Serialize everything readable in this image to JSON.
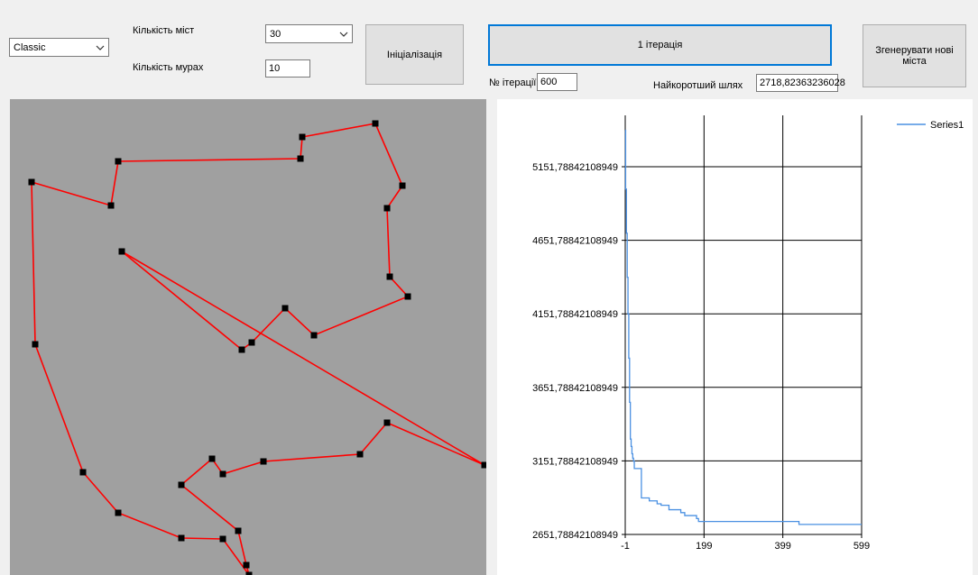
{
  "toolbar": {
    "algorithm": "Classic",
    "cities_label": "Кількість міст",
    "cities_value": "30",
    "ants_label": "Кількість мурах",
    "ants_value": "10",
    "init_button": "Ініціалізація",
    "iterate_button": "1 ітерація",
    "iteration_label": "№ ітерації",
    "iteration_value": "600",
    "shortest_label": "Найкоротший шлях",
    "shortest_value": "2718,82363236028",
    "generate_button": "Згенерувати нові міста"
  },
  "colors": {
    "route": "#ff0000",
    "city": "#000000",
    "series": "#4a90e2",
    "map_bg": "#a0a0a0"
  },
  "chart_data": {
    "type": "line",
    "series": [
      {
        "name": "Series1",
        "x": [
          -1,
          0,
          2,
          4,
          6,
          8,
          10,
          12,
          14,
          16,
          18,
          20,
          22,
          30,
          40,
          60,
          80,
          90,
          110,
          140,
          150,
          170,
          180,
          185,
          440,
          599
        ],
        "y": [
          5400,
          5000,
          4700,
          4400,
          4150,
          3850,
          3550,
          3300,
          3250,
          3200,
          3170,
          3150,
          3100,
          3100,
          2900,
          2880,
          2860,
          2850,
          2820,
          2800,
          2780,
          2780,
          2760,
          2740,
          2720,
          2720
        ]
      }
    ],
    "xticks": [
      "-1",
      "199",
      "399",
      "599"
    ],
    "yticks": [
      "5151,78842108949",
      "4651,78842108949",
      "4151,78842108949",
      "3651,78842108949",
      "3151,78842108949",
      "2651,78842108949"
    ],
    "xlim": [
      -1,
      599
    ],
    "ylim": [
      2651.78842108949,
      5451.78842108949
    ],
    "grid": true,
    "legend": "top-right"
  }
}
